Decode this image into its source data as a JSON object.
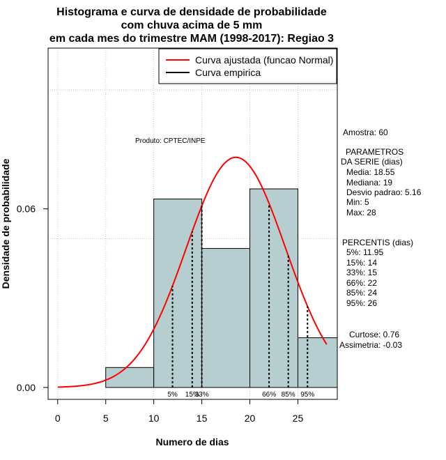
{
  "chart_data": {
    "type": "bar",
    "title": [
      "Histograma e curva de densidade de probabilidade",
      "com chuva acima de 5 mm",
      "em cada mes do trimestre MAM (1998-2017): Regiao 3"
    ],
    "xlabel": "Numero de dias",
    "ylabel": "Densidade de probabilidade",
    "xlim": [
      -1,
      29.1
    ],
    "ylim": [
      -0.004,
      0.114
    ],
    "x_ticks": [
      "0",
      "5",
      "10",
      "15",
      "20",
      "25"
    ],
    "y_ticks": [
      "0.00",
      "0.06"
    ],
    "grid": true,
    "bins": [
      {
        "start": 5,
        "end": 10,
        "density": 0.0067
      },
      {
        "start": 10,
        "end": 15,
        "density": 0.0633
      },
      {
        "start": 15,
        "end": 20,
        "density": 0.0467
      },
      {
        "start": 20,
        "end": 25,
        "density": 0.0667
      },
      {
        "start": 25,
        "end": 30,
        "density": 0.0167
      }
    ],
    "bar_color": "#b6cecf",
    "normal_fit": {
      "name": "Curva ajustada (funcao Normal)",
      "mean": 18.55,
      "sd": 5.16,
      "color": "#ff0000",
      "x_range": [
        0,
        28
      ]
    },
    "legend": [
      {
        "label": "Curva ajustada (funcao Normal)",
        "color": "#ff0000"
      },
      {
        "label": "Curva empirica",
        "color": "#000000"
      }
    ],
    "legend_position": "top-right",
    "percentiles": [
      {
        "label": "5%",
        "x": 11.95
      },
      {
        "label": "15%",
        "x": 14
      },
      {
        "label": "33%",
        "x": 15
      },
      {
        "label": "66%",
        "x": 22
      },
      {
        "label": "85%",
        "x": 24
      },
      {
        "label": "95%",
        "x": 26
      }
    ],
    "product_label": "Produto: CPTEC/INPE",
    "stats": {
      "amostra": "Amostra: 60",
      "param_header1": "PARAMETROS",
      "param_header2": "DA SERIE (dias)",
      "media": "Media: 18.55",
      "mediana": "Mediana: 19",
      "desvio": "Desvio padrao: 5.16",
      "min": "Min: 5",
      "max": "Max: 28",
      "perc_header": "PERCENTIS (dias)",
      "p5": "5%: 11.95",
      "p15": "15%: 14",
      "p33": "33%: 15",
      "p66": "66%: 22",
      "p85": "85%: 24",
      "p95": "95%: 26",
      "curtose": "Curtose: 0.76",
      "assimetria": "Assimetria: -0.03"
    }
  }
}
